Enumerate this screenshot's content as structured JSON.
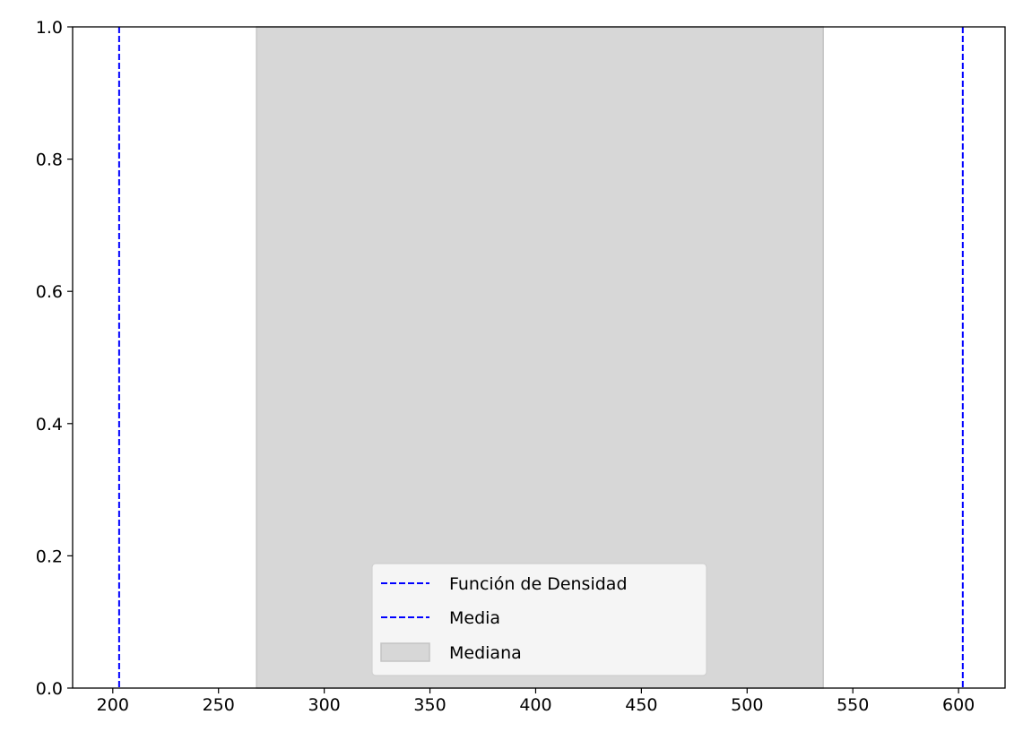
{
  "chart_data": {
    "type": "line",
    "title": "",
    "xlabel": "",
    "ylabel": "",
    "xlim": [
      181,
      622
    ],
    "ylim": [
      0,
      1
    ],
    "x_ticks": [
      200,
      250,
      300,
      350,
      400,
      450,
      500,
      550,
      600
    ],
    "x_tick_labels": [
      "200",
      "250",
      "300",
      "350",
      "400",
      "450",
      "500",
      "550",
      "600"
    ],
    "y_ticks": [
      0,
      0.2,
      0.4,
      0.6,
      0.8,
      1.0
    ],
    "y_tick_labels": [
      "0.0",
      "0.2",
      "0.4",
      "0.6",
      "0.8",
      "1.0"
    ],
    "grid": false,
    "vertical_lines": [
      {
        "x": 203,
        "color": "#0000ff",
        "style": "dashed"
      },
      {
        "x": 602,
        "color": "#0000ff",
        "style": "dashed"
      }
    ],
    "shaded_span": {
      "x_start": 268,
      "x_end": 536,
      "color": "#d7d7d7",
      "edge_color": "#c4c4c4"
    },
    "legend": {
      "position": "lower center",
      "entries": [
        {
          "label": "Función de Densidad",
          "kind": "line",
          "color": "#0000ff",
          "style": "dashed"
        },
        {
          "label": "Media",
          "kind": "line",
          "color": "#0000ff",
          "style": "dashed"
        },
        {
          "label": "Mediana",
          "kind": "patch",
          "color": "#d7d7d7",
          "edge_color": "#c4c4c4"
        }
      ]
    }
  }
}
